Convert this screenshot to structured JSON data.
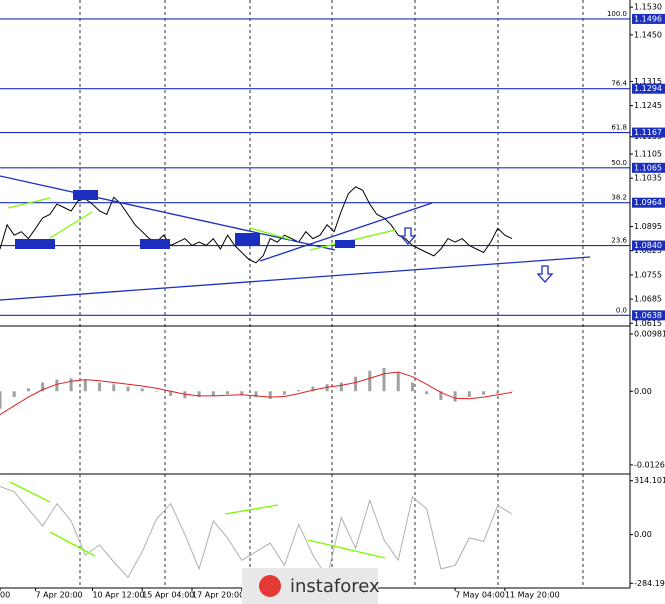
{
  "chart_data": [
    {
      "type": "line",
      "panel": "price",
      "color": "#000000",
      "values": [
        1.083,
        1.09,
        1.087,
        1.088,
        1.086,
        1.089,
        1.092,
        1.093,
        1.096,
        1.095,
        1.094,
        1.097,
        1.0975,
        1.096,
        1.094,
        1.093,
        1.098,
        1.096,
        1.093,
        1.09,
        1.088,
        1.086,
        1.085,
        1.087,
        1.084,
        1.085,
        1.086,
        1.084,
        1.085,
        1.084,
        1.086,
        1.083,
        1.087,
        1.084,
        1.082,
        1.08,
        1.079,
        1.081,
        1.086,
        1.085,
        1.087,
        1.086,
        1.085,
        1.088,
        1.086,
        1.087,
        1.09,
        1.088,
        1.094,
        1.099,
        1.101,
        1.1,
        1.096,
        1.093,
        1.092,
        1.09,
        1.087,
        1.086,
        1.084,
        1.083,
        1.082,
        1.081,
        1.083,
        1.086,
        1.085,
        1.086,
        1.084,
        1.083,
        1.082,
        1.085,
        1.089,
        1.087,
        1.086
      ],
      "ylim": [
        1.061,
        1.1545
      ],
      "yticks": [
        {
          "value": 1.153,
          "label": "1.1530"
        },
        {
          "value": 1.145,
          "label": "1.1450"
        },
        {
          "value": 1.1315,
          "label": "1.1315"
        },
        {
          "value": 1.1245,
          "label": "1.1245"
        },
        {
          "value": 1.1155,
          "label": "1.1155"
        },
        {
          "value": 1.1105,
          "label": "1.1105"
        },
        {
          "value": 1.1035,
          "label": "1.1035"
        },
        {
          "value": 1.0895,
          "label": "1.0895"
        },
        {
          "value": 1.0825,
          "label": "1.0825"
        },
        {
          "value": 1.0755,
          "label": "1.0755"
        },
        {
          "value": 1.0685,
          "label": "1.0685"
        },
        {
          "value": 1.0615,
          "label": "1.0615"
        }
      ],
      "levels": [
        {
          "label": "100.0",
          "price": {
            "value": 1.1496,
            "label": "1.1496"
          }
        },
        {
          "label": "76.4",
          "price": {
            "value": 1.1294,
            "label": "1.1294"
          }
        },
        {
          "label": "61.8",
          "price": {
            "value": 1.1167,
            "label": "1.1167"
          }
        },
        {
          "label": "50.0",
          "price": {
            "value": 1.1065,
            "label": "1.1065"
          }
        },
        {
          "label": "38.2",
          "price": {
            "value": 1.0964,
            "label": "1.0964"
          }
        },
        {
          "label": "23.6",
          "price": {
            "value": 1.084,
            "label": "1.0840"
          }
        },
        {
          "label": "0.0",
          "price": {
            "value": 1.0638,
            "label": "1.0638"
          }
        }
      ],
      "xticks": [
        {
          "value": 0,
          "label": "00"
        },
        {
          "value": 5,
          "label": "7 Apr 20:00"
        },
        {
          "value": 13,
          "label": "10 Apr 12:00"
        },
        {
          "value": 20,
          "label": "15 Apr 04:00"
        },
        {
          "value": 27,
          "label": "17 Apr 20:00"
        },
        {
          "value": 34,
          "label": "22 Ap"
        },
        {
          "value": 64,
          "label": "7 May 04:00"
        },
        {
          "value": 71,
          "label": "11 May 20:00"
        }
      ]
    },
    {
      "type": "macd",
      "panel": "macd",
      "series": [
        {
          "kind": "histogram",
          "color": "#a0a0a0",
          "values": [
            -0.003,
            -0.001,
            0.0005,
            0.0015,
            0.002,
            0.0022,
            0.002,
            0.0015,
            0.0012,
            0.0008,
            0.0005,
            0,
            -0.0008,
            -0.0012,
            -0.001,
            -0.0008,
            -0.0005,
            -0.0006,
            -0.001,
            -0.0013,
            -0.0006,
            0.0002,
            0.0008,
            0.0012,
            0.0015,
            0.0025,
            0.0035,
            0.004,
            0.0032,
            0.0015,
            -0.0005,
            -0.0015,
            -0.0018,
            -0.001,
            -0.0006,
            -0.0004,
            0.0001
          ]
        },
        {
          "kind": "signal",
          "color": "#e02020",
          "values": [
            -0.004,
            -0.0025,
            -0.001,
            0.0003,
            0.0012,
            0.0017,
            0.002,
            0.0018,
            0.0015,
            0.0012,
            0.0009,
            0.0005,
            0,
            -0.0005,
            -0.0008,
            -0.0008,
            -0.0007,
            -0.0006,
            -0.0008,
            -0.001,
            -0.0009,
            -0.0004,
            0.0002,
            0.0007,
            0.001,
            0.0015,
            0.0022,
            0.003,
            0.0033,
            0.0025,
            0.0012,
            -0.0002,
            -0.0012,
            -0.0013,
            -0.001,
            -0.0006,
            -0.0002
          ]
        }
      ],
      "ylim": [
        -0.0135,
        0.0105
      ],
      "yticks": [
        0.00981,
        {
          "value": 0,
          "label": "0.00"
        },
        -0.01263
      ]
    },
    {
      "type": "line",
      "panel": "cci",
      "color": "#b0b0b0",
      "values": [
        280,
        250,
        150,
        50,
        180,
        80,
        -120,
        -60,
        -160,
        -250,
        -100,
        90,
        180,
        0,
        -200,
        80,
        -20,
        -150,
        -100,
        -50,
        -180,
        60,
        -120,
        -250,
        100,
        -80,
        200,
        -30,
        -150,
        220,
        150,
        -200,
        -180,
        -20,
        -40,
        170,
        120
      ],
      "ylim": [
        -300,
        330
      ],
      "yticks": [
        314.1014,
        {
          "value": 0,
          "label": "0.00"
        },
        -284.196
      ]
    },
    {
      "type": "logo",
      "text": "instaforex"
    }
  ]
}
